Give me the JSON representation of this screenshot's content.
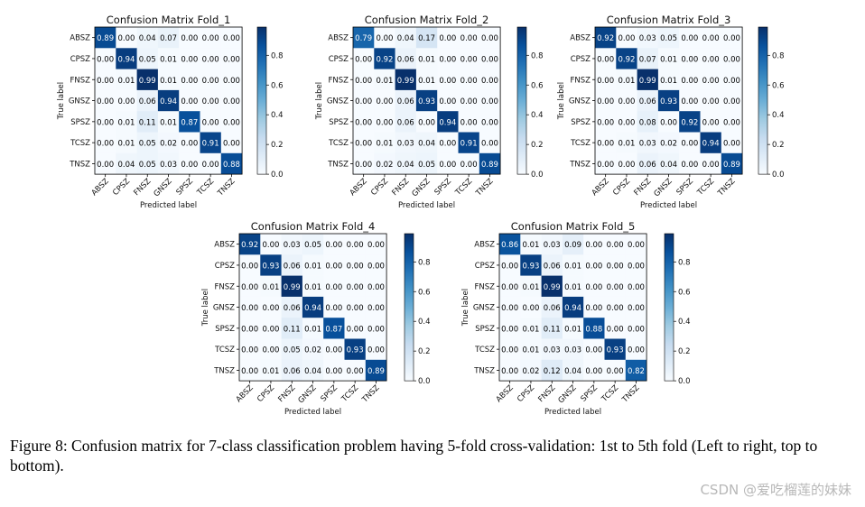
{
  "chart_data": [
    {
      "type": "heatmap",
      "title": "Confusion Matrix Fold_1",
      "xlabel": "Predicted label",
      "ylabel": "True label",
      "labels": [
        "ABSZ",
        "CPSZ",
        "FNSZ",
        "GNSZ",
        "SPSZ",
        "TCSZ",
        "TNSZ"
      ],
      "matrix": [
        [
          0.89,
          0.0,
          0.04,
          0.07,
          0.0,
          0.0,
          0.0
        ],
        [
          0.0,
          0.94,
          0.05,
          0.01,
          0.0,
          0.0,
          0.0
        ],
        [
          0.0,
          0.01,
          0.99,
          0.01,
          0.0,
          0.0,
          0.0
        ],
        [
          0.0,
          0.0,
          0.06,
          0.94,
          0.0,
          0.0,
          0.0
        ],
        [
          0.0,
          0.01,
          0.11,
          0.01,
          0.87,
          0.0,
          0.0
        ],
        [
          0.0,
          0.01,
          0.05,
          0.02,
          0.0,
          0.91,
          0.0
        ],
        [
          0.0,
          0.04,
          0.05,
          0.03,
          0.0,
          0.0,
          0.88
        ]
      ],
      "colorbar_ticks": [
        "0.0",
        "0.2",
        "0.4",
        "0.6",
        "0.8"
      ],
      "vmin": 0,
      "vmax": 0.99
    },
    {
      "type": "heatmap",
      "title": "Confusion Matrix Fold_2",
      "xlabel": "Predicted label",
      "ylabel": "True label",
      "labels": [
        "ABSZ",
        "CPSZ",
        "FNSZ",
        "GNSZ",
        "SPSZ",
        "TCSZ",
        "TNSZ"
      ],
      "matrix": [
        [
          0.79,
          0.0,
          0.04,
          0.17,
          0.0,
          0.0,
          0.0
        ],
        [
          0.0,
          0.92,
          0.06,
          0.01,
          0.0,
          0.0,
          0.0
        ],
        [
          0.0,
          0.01,
          0.99,
          0.01,
          0.0,
          0.0,
          0.0
        ],
        [
          0.0,
          0.0,
          0.06,
          0.93,
          0.0,
          0.0,
          0.0
        ],
        [
          0.0,
          0.0,
          0.06,
          0.0,
          0.94,
          0.0,
          0.0
        ],
        [
          0.0,
          0.01,
          0.03,
          0.04,
          0.0,
          0.91,
          0.0
        ],
        [
          0.0,
          0.02,
          0.04,
          0.05,
          0.0,
          0.0,
          0.89
        ]
      ],
      "colorbar_ticks": [
        "0.0",
        "0.2",
        "0.4",
        "0.6",
        "0.8"
      ],
      "vmin": 0,
      "vmax": 0.99
    },
    {
      "type": "heatmap",
      "title": "Confusion Matrix Fold_3",
      "xlabel": "Predicted label",
      "ylabel": "True label",
      "labels": [
        "ABSZ",
        "CPSZ",
        "FNSZ",
        "GNSZ",
        "SPSZ",
        "TCSZ",
        "TNSZ"
      ],
      "matrix": [
        [
          0.92,
          0.0,
          0.03,
          0.05,
          0.0,
          0.0,
          0.0
        ],
        [
          0.0,
          0.92,
          0.07,
          0.01,
          0.0,
          0.0,
          0.0
        ],
        [
          0.0,
          0.01,
          0.99,
          0.01,
          0.0,
          0.0,
          0.0
        ],
        [
          0.0,
          0.0,
          0.06,
          0.93,
          0.0,
          0.0,
          0.0
        ],
        [
          0.0,
          0.0,
          0.08,
          0.0,
          0.92,
          0.0,
          0.0
        ],
        [
          0.0,
          0.01,
          0.03,
          0.02,
          0.0,
          0.94,
          0.0
        ],
        [
          0.0,
          0.0,
          0.06,
          0.04,
          0.0,
          0.0,
          0.89
        ]
      ],
      "colorbar_ticks": [
        "0.0",
        "0.2",
        "0.4",
        "0.6",
        "0.8"
      ],
      "vmin": 0,
      "vmax": 0.99
    },
    {
      "type": "heatmap",
      "title": "Confusion Matrix Fold_4",
      "xlabel": "Predicted label",
      "ylabel": "True label",
      "labels": [
        "ABSZ",
        "CPSZ",
        "FNSZ",
        "GNSZ",
        "SPSZ",
        "TCSZ",
        "TNSZ"
      ],
      "matrix": [
        [
          0.92,
          0.0,
          0.03,
          0.05,
          0.0,
          0.0,
          0.0
        ],
        [
          0.0,
          0.93,
          0.06,
          0.01,
          0.0,
          0.0,
          0.0
        ],
        [
          0.0,
          0.01,
          0.99,
          0.01,
          0.0,
          0.0,
          0.0
        ],
        [
          0.0,
          0.0,
          0.06,
          0.94,
          0.0,
          0.0,
          0.0
        ],
        [
          0.0,
          0.0,
          0.11,
          0.01,
          0.87,
          0.0,
          0.0
        ],
        [
          0.0,
          0.0,
          0.05,
          0.02,
          0.0,
          0.93,
          0.0
        ],
        [
          0.0,
          0.01,
          0.06,
          0.04,
          0.0,
          0.0,
          0.89
        ]
      ],
      "colorbar_ticks": [
        "0.0",
        "0.2",
        "0.4",
        "0.6",
        "0.8"
      ],
      "vmin": 0,
      "vmax": 0.99
    },
    {
      "type": "heatmap",
      "title": "Confusion Matrix Fold_5",
      "xlabel": "Predicted label",
      "ylabel": "True label",
      "labels": [
        "ABSZ",
        "CPSZ",
        "FNSZ",
        "GNSZ",
        "SPSZ",
        "TCSZ",
        "TNSZ"
      ],
      "matrix": [
        [
          0.86,
          0.01,
          0.03,
          0.09,
          0.0,
          0.0,
          0.0
        ],
        [
          0.0,
          0.93,
          0.06,
          0.01,
          0.0,
          0.0,
          0.0
        ],
        [
          0.0,
          0.01,
          0.99,
          0.01,
          0.0,
          0.0,
          0.0
        ],
        [
          0.0,
          0.0,
          0.06,
          0.94,
          0.0,
          0.0,
          0.0
        ],
        [
          0.0,
          0.01,
          0.11,
          0.01,
          0.88,
          0.0,
          0.0
        ],
        [
          0.0,
          0.01,
          0.03,
          0.03,
          0.0,
          0.93,
          0.0
        ],
        [
          0.0,
          0.02,
          0.12,
          0.04,
          0.0,
          0.0,
          0.82
        ]
      ],
      "colorbar_ticks": [
        "0.0",
        "0.2",
        "0.4",
        "0.6",
        "0.8"
      ],
      "vmin": 0,
      "vmax": 0.99
    }
  ],
  "caption": "Figure 8: Confusion matrix for 7-class classification problem having 5-fold cross-validation: 1st to 5th fold (Left to right, top to bottom).",
  "watermark": "CSDN @爱吃榴莲的妹妹",
  "colors": {
    "cmap_low": "#f7fbff",
    "cmap_high": "#08306b"
  }
}
